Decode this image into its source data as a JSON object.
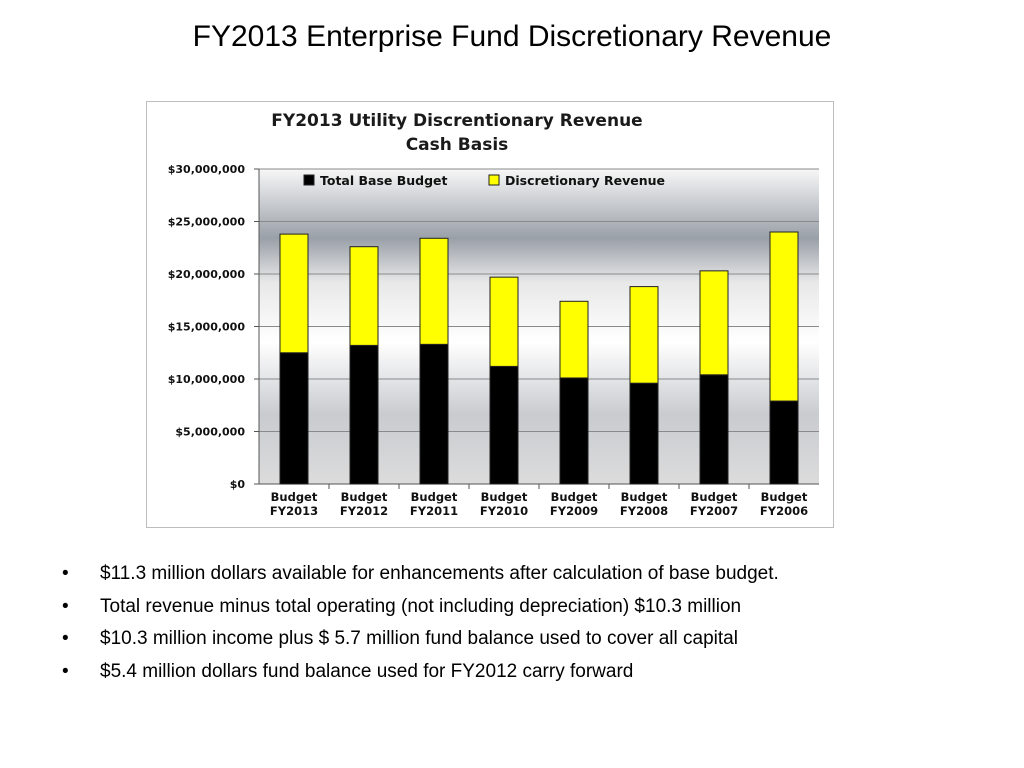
{
  "slide": {
    "title": "FY2013 Enterprise Fund Discretionary Revenue"
  },
  "bullets": [
    {
      "marker": "•",
      "text": "$11.3 million dollars available for enhancements after calculation of base budget."
    },
    {
      "marker": "•",
      "text": "Total revenue minus total operating (not including depreciation) $10.3 million"
    },
    {
      "marker": "•",
      "text": "$10.3 million income plus $ 5.7 million  fund balance used to cover all capital"
    },
    {
      "marker": "•",
      "text": "$5.4 million dollars fund balance used for FY2012 carry forward"
    }
  ],
  "chart_data": {
    "type": "bar",
    "stacked": true,
    "title": "FY2013 Utility Discrentionary Revenue",
    "subtitle": "Cash Basis",
    "categories": [
      [
        "Budget",
        "FY2013"
      ],
      [
        "Budget",
        "FY2012"
      ],
      [
        "Budget",
        "FY2011"
      ],
      [
        "Budget",
        "FY2010"
      ],
      [
        "Budget",
        "FY2009"
      ],
      [
        "Budget",
        "FY2008"
      ],
      [
        "Budget",
        "FY2007"
      ],
      [
        "Budget",
        "FY2006"
      ]
    ],
    "series": [
      {
        "name": "Total Base Budget",
        "color": "#000000",
        "values": [
          12500000,
          13200000,
          13300000,
          11200000,
          10100000,
          9600000,
          10400000,
          7900000
        ]
      },
      {
        "name": "Discretionary Revenue",
        "color": "#ffff00",
        "values": [
          11300000,
          9400000,
          10100000,
          8500000,
          7300000,
          9200000,
          9900000,
          16100000
        ]
      }
    ],
    "ylim": [
      0,
      30000000
    ],
    "yticks": [
      0,
      5000000,
      10000000,
      15000000,
      20000000,
      25000000,
      30000000
    ],
    "ytick_labels": [
      "$0",
      "$5,000,000",
      "$10,000,000",
      "$15,000,000",
      "$20,000,000",
      "$25,000,000",
      "$30,000,000"
    ],
    "legend_position": "top",
    "grid": true,
    "background": "gray-gradient"
  }
}
